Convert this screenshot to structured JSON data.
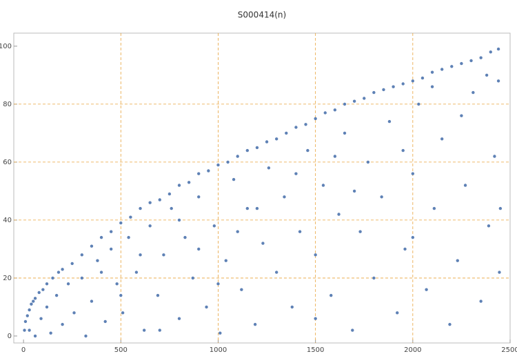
{
  "chart_data": {
    "type": "scatter",
    "title": "S000414(n)",
    "x": [
      5,
      10,
      20,
      30,
      40,
      50,
      60,
      80,
      100,
      120,
      150,
      180,
      200,
      250,
      300,
      350,
      400,
      450,
      500,
      550,
      600,
      650,
      700,
      750,
      800,
      850,
      900,
      950,
      1000,
      1050,
      1100,
      1150,
      1200,
      1250,
      1300,
      1350,
      1400,
      1450,
      1500,
      1550,
      1600,
      1650,
      1700,
      1750,
      1800,
      1850,
      1900,
      1950,
      2000,
      2050,
      2100,
      2150,
      2200,
      2250,
      2300,
      2350,
      2400,
      2440,
      30,
      60,
      90,
      120,
      140,
      170,
      200,
      230,
      260,
      300,
      320,
      350,
      380,
      420,
      450,
      480,
      510,
      540,
      580,
      620,
      650,
      690,
      720,
      760,
      800,
      830,
      870,
      900,
      940,
      980,
      1010,
      1040,
      1080,
      1120,
      1150,
      1190,
      1230,
      1260,
      1300,
      1340,
      1380,
      1420,
      1460,
      1500,
      1540,
      1580,
      1620,
      1650,
      1690,
      1730,
      1770,
      1800,
      1840,
      1880,
      1920,
      1960,
      2000,
      2030,
      2070,
      2110,
      2150,
      2190,
      2230,
      2270,
      2310,
      2350,
      2390,
      2420,
      2440,
      2450,
      2445,
      2100,
      1600,
      1200,
      900,
      600,
      400,
      2250,
      1950,
      1700,
      1400,
      1100,
      800,
      500,
      2380,
      2000,
      1500,
      1000,
      700
    ],
    "values": [
      2,
      5,
      7,
      9,
      11,
      12,
      13,
      15,
      16,
      18,
      20,
      22,
      23,
      25,
      28,
      31,
      34,
      36,
      39,
      41,
      44,
      46,
      47,
      49,
      52,
      53,
      56,
      57,
      59,
      60,
      62,
      64,
      65,
      67,
      68,
      70,
      72,
      73,
      75,
      77,
      78,
      80,
      81,
      82,
      84,
      85,
      86,
      87,
      88,
      89,
      91,
      92,
      93,
      94,
      95,
      96,
      98,
      99,
      2,
      0,
      6,
      10,
      1,
      14,
      4,
      18,
      8,
      20,
      0,
      12,
      26,
      5,
      30,
      18,
      8,
      34,
      22,
      2,
      38,
      14,
      28,
      44,
      6,
      34,
      20,
      48,
      10,
      38,
      1,
      26,
      54,
      16,
      44,
      4,
      32,
      58,
      22,
      48,
      10,
      36,
      64,
      28,
      52,
      14,
      42,
      70,
      2,
      36,
      60,
      20,
      48,
      74,
      8,
      30,
      56,
      80,
      16,
      44,
      68,
      4,
      26,
      52,
      84,
      12,
      38,
      62,
      88,
      44,
      22,
      86,
      62,
      44,
      30,
      28,
      22,
      76,
      64,
      50,
      56,
      36,
      40,
      14,
      90,
      34,
      6,
      18,
      2
    ],
    "color": "#5e81b5",
    "xlim": [
      -50,
      2500
    ],
    "ylim": [
      -2.4,
      104.5
    ],
    "xticks": [
      0,
      500,
      1000,
      1500,
      2000,
      2500
    ],
    "yticks": [
      0,
      20,
      40,
      60,
      80,
      100
    ],
    "grid": true,
    "grid_color": "#e8a33a"
  }
}
